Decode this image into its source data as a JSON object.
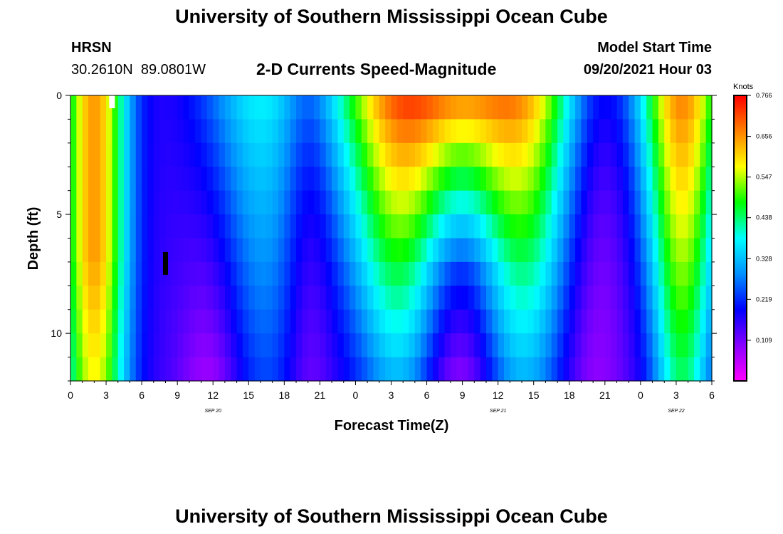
{
  "header": {
    "title": "University of Southern Mississippi Ocean Cube",
    "station_name": "HRSN",
    "station_coords": "30.2610N  89.0801W",
    "plot_title": "2-D Currents Speed-Magnitude",
    "model_start_label": "Model Start Time",
    "model_start_value": "09/20/2021 Hour 03"
  },
  "footer": {
    "title": "University of Southern Mississippi Ocean Cube"
  },
  "chart_data": {
    "type": "heatmap",
    "xlabel": "Forecast Time(Z)",
    "ylabel": "Depth (ft)",
    "x_range_hours": [
      0,
      54
    ],
    "y_range_ft": [
      0,
      12
    ],
    "y_reversed": true,
    "x_tick_labels": [
      "0",
      "3",
      "6",
      "9",
      "12",
      "15",
      "18",
      "21",
      "0",
      "3",
      "6",
      "9",
      "12",
      "15",
      "18",
      "21",
      "0",
      "3",
      "6"
    ],
    "y_tick_labels": [
      "0",
      "5",
      "10"
    ],
    "y_tick_values": [
      0,
      5,
      10
    ],
    "date_labels": [
      {
        "text": "SEP 20",
        "hour": 12
      },
      {
        "text": "SEP 21",
        "hour": 36
      },
      {
        "text": "SEP 22",
        "hour": 51
      }
    ],
    "colorbar": {
      "unit": "Knots",
      "min": 0,
      "max": 0.766,
      "labels": [
        "0.766",
        "0.656",
        "0.547",
        "0.438",
        "0.328",
        "0.219",
        "0.109"
      ],
      "label_values": [
        0.766,
        0.656,
        0.547,
        0.438,
        0.328,
        0.219,
        0.109
      ],
      "colors": [
        "#ff00ff",
        "#8800ff",
        "#0000ff",
        "#0090ff",
        "#00ffff",
        "#00ff00",
        "#ffff00",
        "#ff8000",
        "#ff0000"
      ]
    },
    "markers": [
      {
        "name": "model-start-marker",
        "color": "#ffffff",
        "hour": 3.5
      },
      {
        "name": "max-speed-marker",
        "color": "#000000",
        "hour": 8.0,
        "depth_ft": 7
      }
    ],
    "grid": false,
    "legend": "right"
  }
}
